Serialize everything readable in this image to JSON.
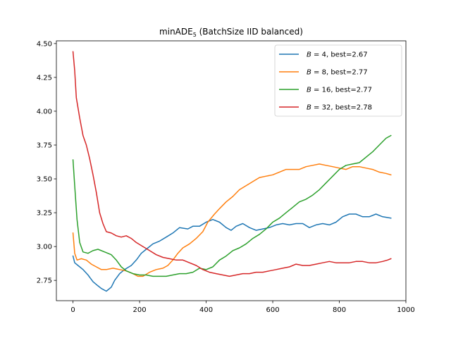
{
  "chart_data": {
    "type": "line",
    "title_prefix": "minADE",
    "title_sub": "5",
    "title_suffix": " (BatchSize IID balanced)",
    "xlim": [
      -50,
      1000
    ],
    "ylim": [
      2.6,
      4.52
    ],
    "xticks": [
      0,
      200,
      400,
      600,
      800,
      1000
    ],
    "yticks": [
      "2.75",
      "3.00",
      "3.25",
      "3.50",
      "3.75",
      "4.00",
      "4.25",
      "4.50"
    ],
    "legend_position": "top-right",
    "series": [
      {
        "name_var": "B",
        "name_rest": " = 4, best=2.67",
        "color": "#1f77b4",
        "points": [
          [
            0,
            2.93
          ],
          [
            5,
            2.88
          ],
          [
            15,
            2.86
          ],
          [
            30,
            2.83
          ],
          [
            45,
            2.79
          ],
          [
            60,
            2.74
          ],
          [
            75,
            2.71
          ],
          [
            85,
            2.69
          ],
          [
            100,
            2.67
          ],
          [
            115,
            2.7
          ],
          [
            125,
            2.75
          ],
          [
            140,
            2.8
          ],
          [
            155,
            2.83
          ],
          [
            175,
            2.86
          ],
          [
            190,
            2.9
          ],
          [
            205,
            2.95
          ],
          [
            220,
            2.98
          ],
          [
            240,
            3.02
          ],
          [
            260,
            3.04
          ],
          [
            280,
            3.07
          ],
          [
            300,
            3.1
          ],
          [
            320,
            3.14
          ],
          [
            345,
            3.13
          ],
          [
            360,
            3.15
          ],
          [
            380,
            3.15
          ],
          [
            400,
            3.18
          ],
          [
            420,
            3.2
          ],
          [
            440,
            3.18
          ],
          [
            460,
            3.14
          ],
          [
            475,
            3.12
          ],
          [
            490,
            3.15
          ],
          [
            510,
            3.17
          ],
          [
            530,
            3.14
          ],
          [
            550,
            3.12
          ],
          [
            570,
            3.13
          ],
          [
            590,
            3.14
          ],
          [
            610,
            3.16
          ],
          [
            630,
            3.17
          ],
          [
            650,
            3.16
          ],
          [
            670,
            3.17
          ],
          [
            690,
            3.17
          ],
          [
            710,
            3.14
          ],
          [
            730,
            3.16
          ],
          [
            750,
            3.17
          ],
          [
            770,
            3.16
          ],
          [
            790,
            3.18
          ],
          [
            810,
            3.22
          ],
          [
            830,
            3.24
          ],
          [
            850,
            3.24
          ],
          [
            870,
            3.22
          ],
          [
            890,
            3.22
          ],
          [
            910,
            3.24
          ],
          [
            930,
            3.22
          ],
          [
            955,
            3.21
          ]
        ]
      },
      {
        "name_var": "B",
        "name_rest": " = 8, best=2.77",
        "color": "#ff7f0e",
        "points": [
          [
            0,
            3.1
          ],
          [
            5,
            2.95
          ],
          [
            12,
            2.9
          ],
          [
            25,
            2.91
          ],
          [
            40,
            2.9
          ],
          [
            55,
            2.87
          ],
          [
            70,
            2.85
          ],
          [
            85,
            2.83
          ],
          [
            100,
            2.83
          ],
          [
            120,
            2.84
          ],
          [
            140,
            2.83
          ],
          [
            160,
            2.82
          ],
          [
            180,
            2.8
          ],
          [
            195,
            2.78
          ],
          [
            210,
            2.78
          ],
          [
            230,
            2.81
          ],
          [
            250,
            2.83
          ],
          [
            270,
            2.84
          ],
          [
            285,
            2.86
          ],
          [
            300,
            2.9
          ],
          [
            315,
            2.95
          ],
          [
            330,
            2.99
          ],
          [
            350,
            3.02
          ],
          [
            370,
            3.06
          ],
          [
            390,
            3.11
          ],
          [
            405,
            3.18
          ],
          [
            425,
            3.24
          ],
          [
            440,
            3.28
          ],
          [
            460,
            3.33
          ],
          [
            480,
            3.37
          ],
          [
            500,
            3.42
          ],
          [
            520,
            3.45
          ],
          [
            540,
            3.48
          ],
          [
            560,
            3.51
          ],
          [
            580,
            3.52
          ],
          [
            600,
            3.53
          ],
          [
            620,
            3.55
          ],
          [
            640,
            3.57
          ],
          [
            660,
            3.57
          ],
          [
            680,
            3.57
          ],
          [
            700,
            3.59
          ],
          [
            720,
            3.6
          ],
          [
            740,
            3.61
          ],
          [
            760,
            3.6
          ],
          [
            780,
            3.59
          ],
          [
            800,
            3.58
          ],
          [
            820,
            3.57
          ],
          [
            840,
            3.59
          ],
          [
            860,
            3.59
          ],
          [
            880,
            3.58
          ],
          [
            900,
            3.57
          ],
          [
            920,
            3.55
          ],
          [
            940,
            3.54
          ],
          [
            955,
            3.53
          ]
        ]
      },
      {
        "name_var": "B",
        "name_rest": " = 16, best=2.77",
        "color": "#2ca02c",
        "points": [
          [
            0,
            3.64
          ],
          [
            5,
            3.45
          ],
          [
            12,
            3.2
          ],
          [
            20,
            3.03
          ],
          [
            30,
            2.96
          ],
          [
            45,
            2.95
          ],
          [
            60,
            2.97
          ],
          [
            75,
            2.98
          ],
          [
            95,
            2.96
          ],
          [
            115,
            2.94
          ],
          [
            130,
            2.9
          ],
          [
            145,
            2.85
          ],
          [
            160,
            2.82
          ],
          [
            180,
            2.8
          ],
          [
            200,
            2.79
          ],
          [
            220,
            2.79
          ],
          [
            240,
            2.78
          ],
          [
            260,
            2.78
          ],
          [
            280,
            2.78
          ],
          [
            300,
            2.79
          ],
          [
            320,
            2.8
          ],
          [
            340,
            2.8
          ],
          [
            360,
            2.81
          ],
          [
            380,
            2.84
          ],
          [
            400,
            2.83
          ],
          [
            420,
            2.85
          ],
          [
            440,
            2.9
          ],
          [
            460,
            2.93
          ],
          [
            480,
            2.97
          ],
          [
            500,
            2.99
          ],
          [
            520,
            3.02
          ],
          [
            540,
            3.06
          ],
          [
            560,
            3.09
          ],
          [
            580,
            3.13
          ],
          [
            600,
            3.18
          ],
          [
            620,
            3.21
          ],
          [
            640,
            3.25
          ],
          [
            660,
            3.29
          ],
          [
            680,
            3.33
          ],
          [
            700,
            3.35
          ],
          [
            720,
            3.38
          ],
          [
            740,
            3.42
          ],
          [
            760,
            3.47
          ],
          [
            780,
            3.52
          ],
          [
            800,
            3.57
          ],
          [
            820,
            3.6
          ],
          [
            840,
            3.61
          ],
          [
            860,
            3.62
          ],
          [
            880,
            3.66
          ],
          [
            900,
            3.7
          ],
          [
            920,
            3.75
          ],
          [
            940,
            3.8
          ],
          [
            955,
            3.82
          ]
        ]
      },
      {
        "name_var": "B",
        "name_rest": " = 32, best=2.78",
        "color": "#d62728",
        "points": [
          [
            0,
            4.44
          ],
          [
            5,
            4.3
          ],
          [
            10,
            4.1
          ],
          [
            20,
            3.95
          ],
          [
            30,
            3.82
          ],
          [
            40,
            3.75
          ],
          [
            50,
            3.65
          ],
          [
            60,
            3.53
          ],
          [
            70,
            3.4
          ],
          [
            80,
            3.25
          ],
          [
            90,
            3.17
          ],
          [
            100,
            3.11
          ],
          [
            115,
            3.1
          ],
          [
            130,
            3.08
          ],
          [
            145,
            3.07
          ],
          [
            160,
            3.08
          ],
          [
            175,
            3.06
          ],
          [
            190,
            3.03
          ],
          [
            210,
            3.0
          ],
          [
            230,
            2.97
          ],
          [
            250,
            2.94
          ],
          [
            270,
            2.92
          ],
          [
            290,
            2.91
          ],
          [
            310,
            2.9
          ],
          [
            330,
            2.9
          ],
          [
            350,
            2.88
          ],
          [
            370,
            2.86
          ],
          [
            390,
            2.83
          ],
          [
            410,
            2.81
          ],
          [
            430,
            2.8
          ],
          [
            450,
            2.79
          ],
          [
            470,
            2.78
          ],
          [
            490,
            2.79
          ],
          [
            510,
            2.8
          ],
          [
            530,
            2.8
          ],
          [
            550,
            2.81
          ],
          [
            570,
            2.81
          ],
          [
            590,
            2.82
          ],
          [
            610,
            2.83
          ],
          [
            630,
            2.84
          ],
          [
            650,
            2.85
          ],
          [
            670,
            2.87
          ],
          [
            690,
            2.86
          ],
          [
            710,
            2.86
          ],
          [
            730,
            2.87
          ],
          [
            750,
            2.88
          ],
          [
            770,
            2.89
          ],
          [
            790,
            2.88
          ],
          [
            810,
            2.88
          ],
          [
            830,
            2.88
          ],
          [
            850,
            2.89
          ],
          [
            870,
            2.89
          ],
          [
            890,
            2.88
          ],
          [
            910,
            2.88
          ],
          [
            930,
            2.89
          ],
          [
            945,
            2.9
          ],
          [
            955,
            2.91
          ]
        ]
      }
    ]
  }
}
